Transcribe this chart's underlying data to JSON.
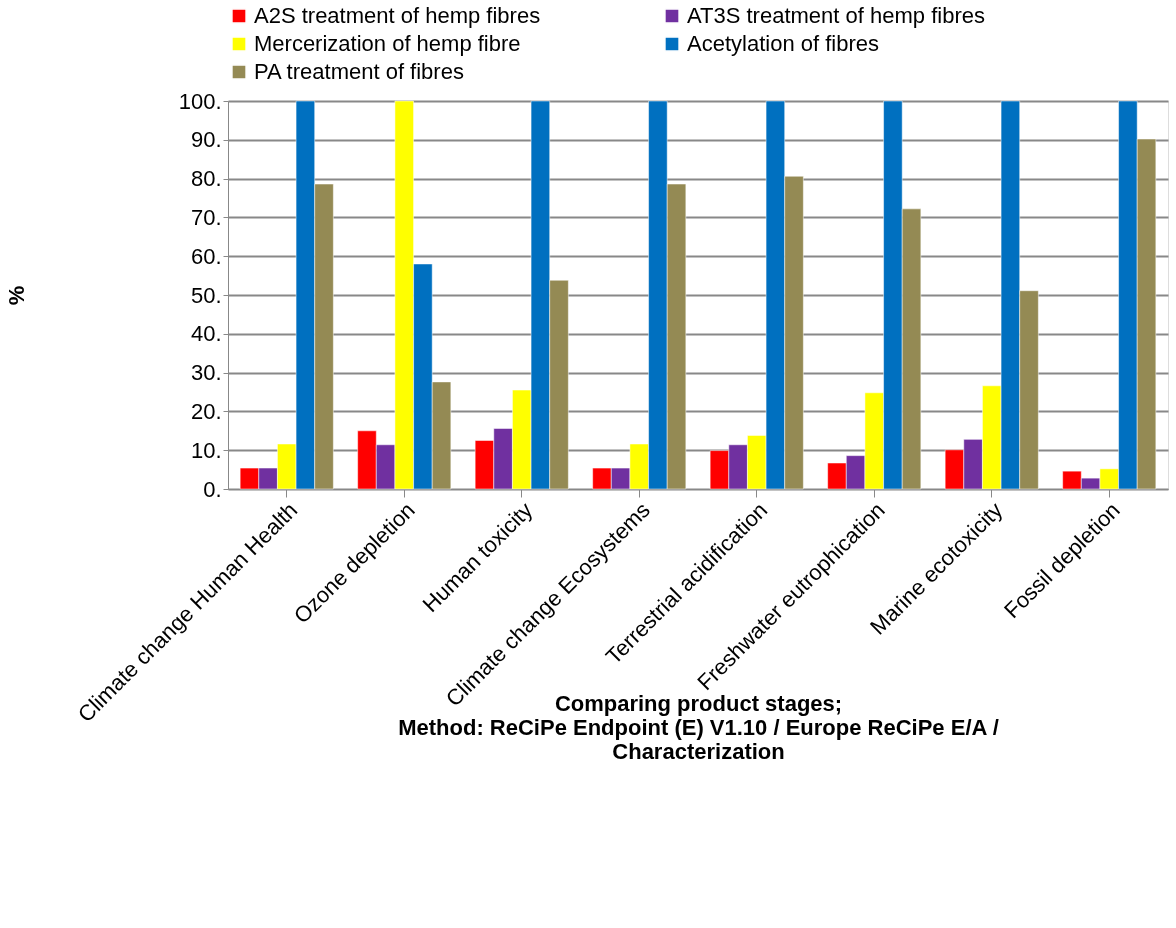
{
  "chart_data": {
    "type": "bar",
    "xlabel": "Comparing product stages;\nMethod: ReCiPe Endpoint (E) V1.10 / Europe ReCiPe E/A /\nCharacterization",
    "ylabel": "%",
    "categories": [
      "Climate change Human Health",
      "Ozone depletion",
      "Human toxicity",
      "Climate change Ecosystems",
      "Terrestrial acidification",
      "Freshwater eutrophication",
      "Marine ecotoxicity",
      "Fossil depletion"
    ],
    "series": [
      {
        "name": "A2S treatment of hemp fibres",
        "color": "#ff0000",
        "values": [
          5.4,
          15.0,
          12.5,
          5.4,
          9.9,
          6.7,
          10.1,
          4.6
        ]
      },
      {
        "name": "AT3S treatment of hemp fibres",
        "color": "#7030a0",
        "values": [
          5.4,
          11.4,
          15.6,
          5.4,
          11.4,
          8.6,
          12.8,
          2.8
        ]
      },
      {
        "name": "Mercerization of hemp fibre",
        "color": "#ffff00",
        "values": [
          11.6,
          100,
          25.5,
          11.6,
          13.8,
          24.8,
          26.6,
          5.2
        ]
      },
      {
        "name": "Acetylation of fibres",
        "color": "#0070c0",
        "values": [
          100,
          58.0,
          100,
          100,
          100,
          100,
          100,
          100
        ]
      },
      {
        "name": "PA treatment of fibres",
        "color": "#948a54",
        "values": [
          78.6,
          27.6,
          53.8,
          78.6,
          80.6,
          72.2,
          51.1,
          90.2
        ]
      }
    ],
    "ylim": [
      0,
      100
    ],
    "yticks": [
      {
        "value": 0,
        "label": "0."
      },
      {
        "value": 10,
        "label": "10."
      },
      {
        "value": 20,
        "label": "20."
      },
      {
        "value": 30,
        "label": "30."
      },
      {
        "value": 40,
        "label": "40."
      },
      {
        "value": 50,
        "label": "50."
      },
      {
        "value": 60,
        "label": "60."
      },
      {
        "value": 70,
        "label": "70."
      },
      {
        "value": 80,
        "label": "80."
      },
      {
        "value": 90,
        "label": "90."
      },
      {
        "value": 100,
        "label": "100."
      }
    ],
    "grid": "y",
    "legend": "top"
  }
}
